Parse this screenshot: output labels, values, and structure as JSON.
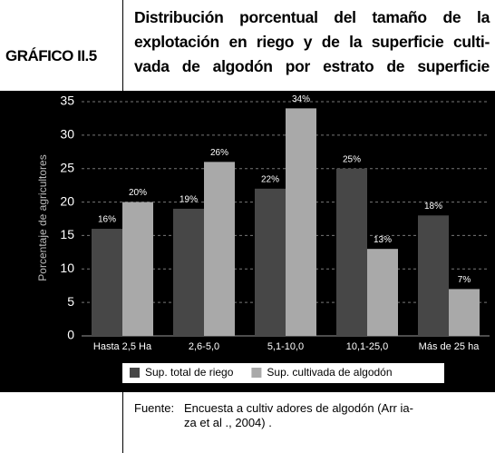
{
  "header": {
    "label": "GRÁFICO II.5",
    "title_lines": [
      "Distribución porcentual del tamaño de la",
      "explotación en riego y de la superficie culti-",
      "vada de algodón por estrato de superficie"
    ]
  },
  "chart_data": {
    "type": "bar",
    "y_label": "Porcentaje de agricultores",
    "categories": [
      "Hasta 2,5 Ha",
      "2,6-5,0",
      "5,1-10,0",
      "10,1-25,0",
      "Más de 25 ha"
    ],
    "series": [
      {
        "name": "Sup. total de riego",
        "color": "#474747",
        "values": [
          16,
          19,
          22,
          25,
          18
        ],
        "value_labels": [
          "16%",
          "19%",
          "22%",
          "25%",
          "18%"
        ]
      },
      {
        "name": "Sup. cultivada de algodón",
        "color": "#a9a9a9",
        "values": [
          20,
          26,
          34,
          13,
          7
        ],
        "value_labels": [
          "20%",
          "26%",
          "34%",
          "13%",
          "7%"
        ]
      }
    ],
    "ylim": [
      0,
      35
    ],
    "yticks": [
      0,
      5,
      10,
      15,
      20,
      25,
      30,
      35
    ],
    "grid": true
  },
  "source": {
    "label": "Fuente:",
    "lines": [
      "Encuesta a cultiv adores de algodón (Arr ia-",
      "za et al ., 2004) ."
    ]
  }
}
